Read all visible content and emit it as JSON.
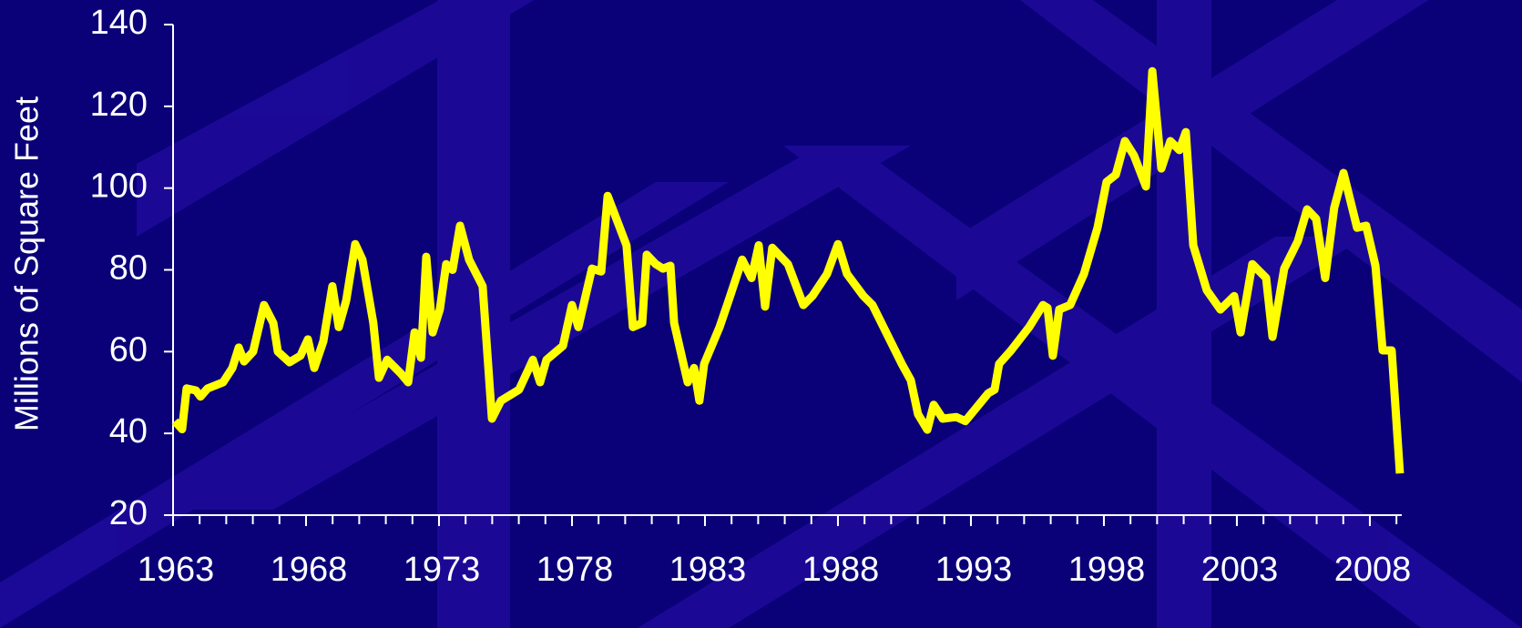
{
  "chart_data": {
    "type": "line",
    "y_label": "Millions of Square Feet",
    "x": [
      1963.07,
      1963.34,
      1963.51,
      1963.86,
      1964.03,
      1964.3,
      1964.88,
      1965.23,
      1965.47,
      1965.67,
      1966.01,
      1966.42,
      1966.77,
      1966.94,
      1967.38,
      1967.79,
      1968.07,
      1968.31,
      1968.65,
      1968.99,
      1969.23,
      1969.51,
      1969.85,
      1970.12,
      1970.53,
      1970.74,
      1971.05,
      1971.56,
      1971.84,
      1972.08,
      1972.32,
      1972.52,
      1972.76,
      1973.03,
      1973.27,
      1973.51,
      1973.79,
      1974.13,
      1974.64,
      1974.99,
      1975.33,
      1976.01,
      1976.53,
      1976.8,
      1977.04,
      1977.66,
      1978.0,
      1978.24,
      1978.75,
      1979.1,
      1979.34,
      1980.05,
      1980.29,
      1980.64,
      1980.81,
      1981.15,
      1981.42,
      1981.7,
      1981.84,
      1982.35,
      1982.59,
      1982.79,
      1982.97,
      1983.55,
      1983.89,
      1984.4,
      1984.75,
      1985.02,
      1985.26,
      1985.53,
      1986.12,
      1986.7,
      1987.04,
      1987.59,
      1988.0,
      1988.34,
      1988.96,
      1989.3,
      1990.4,
      1990.74,
      1991.01,
      1991.36,
      1991.6,
      1991.94,
      1992.45,
      1992.79,
      1993.65,
      1993.89,
      1994.06,
      1994.51,
      1995.19,
      1995.71,
      1995.88,
      1996.08,
      1996.32,
      1996.73,
      1997.25,
      1997.76,
      1998.1,
      1998.45,
      1998.79,
      1999.13,
      1999.58,
      1999.82,
      2000.16,
      2000.5,
      2000.84,
      2001.08,
      2001.36,
      2001.87,
      2002.38,
      2002.9,
      2003.14,
      2003.58,
      2004.1,
      2004.34,
      2004.78,
      2005.29,
      2005.64,
      2005.98,
      2006.32,
      2006.66,
      2007.01,
      2007.52,
      2007.86,
      2008.21,
      2008.48,
      2008.82,
      2009.13
    ],
    "series": [
      {
        "name": "Square Feet",
        "color": "#ffff00",
        "values": [
          43,
          41,
          51,
          50.5,
          49,
          51,
          52.5,
          56,
          61,
          57.6,
          60,
          71.4,
          67,
          60,
          57.4,
          59,
          63,
          56,
          62.5,
          76,
          66,
          72.5,
          86.3,
          82.5,
          67,
          53.6,
          58,
          54.7,
          52.5,
          64.7,
          58.5,
          83.2,
          64.7,
          70.3,
          81.4,
          80,
          90.8,
          82.5,
          76,
          43.6,
          48,
          50.7,
          58,
          52.5,
          58,
          61.4,
          71.4,
          66,
          80.3,
          79.6,
          98.1,
          86,
          66,
          67,
          83.7,
          81.4,
          80.3,
          81,
          67,
          52.5,
          56,
          48,
          57,
          66,
          72.5,
          82.5,
          78,
          86,
          71,
          85.4,
          81.4,
          71.4,
          73.6,
          79,
          86.3,
          79,
          73.6,
          71.4,
          57,
          53,
          44.7,
          40.9,
          47,
          43.6,
          44,
          43,
          49.8,
          50.7,
          57,
          60.3,
          66,
          71.4,
          70.7,
          59,
          70.3,
          71.4,
          79,
          90.3,
          101.5,
          103.3,
          111.5,
          108,
          100.4,
          128.6,
          104.8,
          111.5,
          109.3,
          113.7,
          86,
          75,
          70.3,
          73.6,
          64.7,
          81.4,
          78,
          63.6,
          80.3,
          87,
          94.8,
          92.5,
          78,
          95.2,
          103.7,
          90.3,
          90.8,
          81,
          60.3,
          60.3,
          30.2
        ]
      }
    ],
    "xlim": [
      1963,
      2009.2
    ],
    "xticks": [
      1963,
      1968,
      1973,
      1978,
      1983,
      1988,
      1993,
      1998,
      2003,
      2008
    ],
    "xminorticks": [
      1963,
      1964,
      1965,
      1966,
      1967,
      1968,
      1969,
      1970,
      1971,
      1972,
      1973,
      1974,
      1975,
      1976,
      1977,
      1978,
      1979,
      1980,
      1981,
      1982,
      1983,
      1984,
      1985,
      1986,
      1987,
      1988,
      1989,
      1990,
      1991,
      1992,
      1993,
      1994,
      1995,
      1996,
      1997,
      1998,
      1999,
      2000,
      2001,
      2002,
      2003,
      2004,
      2005,
      2006,
      2007,
      2008,
      2009
    ],
    "ylim": [
      20,
      140
    ],
    "yticks": [
      20,
      40,
      60,
      80,
      100,
      120,
      140
    ],
    "grid": false
  }
}
